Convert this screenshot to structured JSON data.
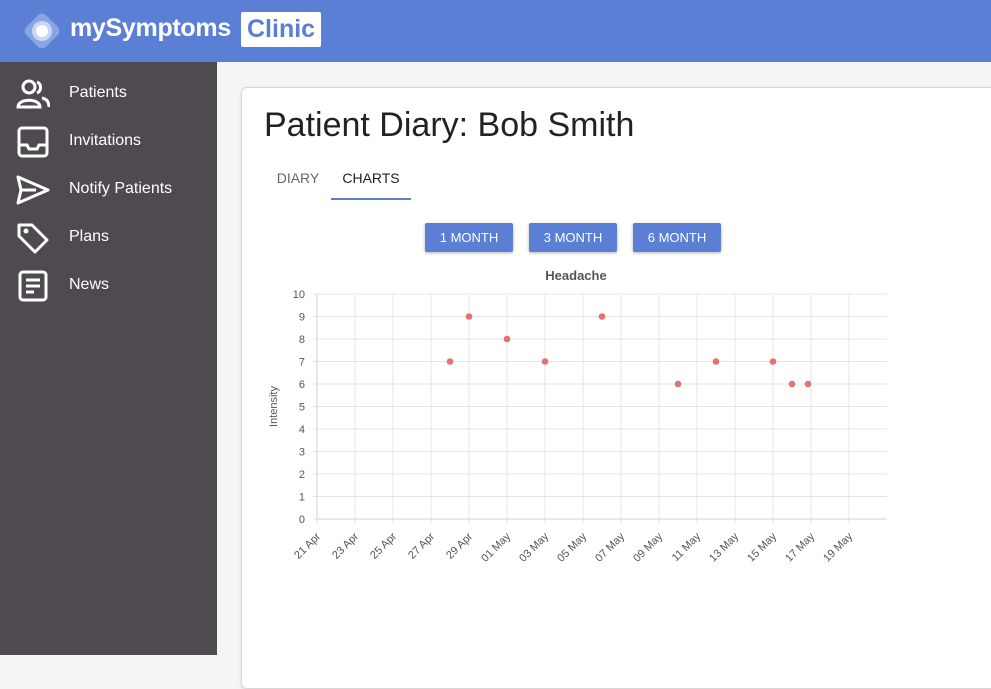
{
  "header": {
    "app_name": "mySymptoms",
    "badge": "Clinic",
    "logo_icon": "app-logo-icon",
    "brand_color": "#5a7fd4"
  },
  "sidebar": {
    "items": [
      {
        "label": "Patients",
        "icon": "users-icon"
      },
      {
        "label": "Invitations",
        "icon": "inbox-icon"
      },
      {
        "label": "Notify Patients",
        "icon": "send-icon"
      },
      {
        "label": "Plans",
        "icon": "tag-icon"
      },
      {
        "label": "News",
        "icon": "document-icon"
      }
    ]
  },
  "page": {
    "title": "Patient Diary: Bob Smith",
    "tabs": [
      {
        "label": "DIARY",
        "active": false
      },
      {
        "label": "CHARTS",
        "active": true
      }
    ],
    "range_buttons": [
      "1 MONTH",
      "3 MONTH",
      "6 MONTH"
    ]
  },
  "chart_data": {
    "type": "scatter",
    "title": "Headache",
    "xlabel": "",
    "ylabel": "Intensity",
    "ylim": [
      0,
      10
    ],
    "yticks": [
      0,
      1,
      2,
      3,
      4,
      5,
      6,
      7,
      8,
      9,
      10
    ],
    "xlim": [
      "2020-04-21",
      "2020-05-21"
    ],
    "xticks": [
      "21 Apr",
      "23 Apr",
      "25 Apr",
      "27 Apr",
      "29 Apr",
      "01 May",
      "03 May",
      "05 May",
      "07 May",
      "09 May",
      "11 May",
      "13 May",
      "15 May",
      "17 May",
      "19 May"
    ],
    "grid": true,
    "point_color": "#e57373",
    "points": [
      {
        "x": "2020-04-28",
        "y": 7
      },
      {
        "x": "2020-04-29",
        "y": 9
      },
      {
        "x": "2020-05-01",
        "y": 8
      },
      {
        "x": "2020-05-03",
        "y": 7
      },
      {
        "x": "2020-05-06",
        "y": 9
      },
      {
        "x": "2020-05-10",
        "y": 6
      },
      {
        "x": "2020-05-12",
        "y": 7
      },
      {
        "x": "2020-05-15",
        "y": 7
      },
      {
        "x": "2020-05-16",
        "y": 6
      },
      {
        "x": "2020-05-16",
        "y": 6
      }
    ]
  }
}
